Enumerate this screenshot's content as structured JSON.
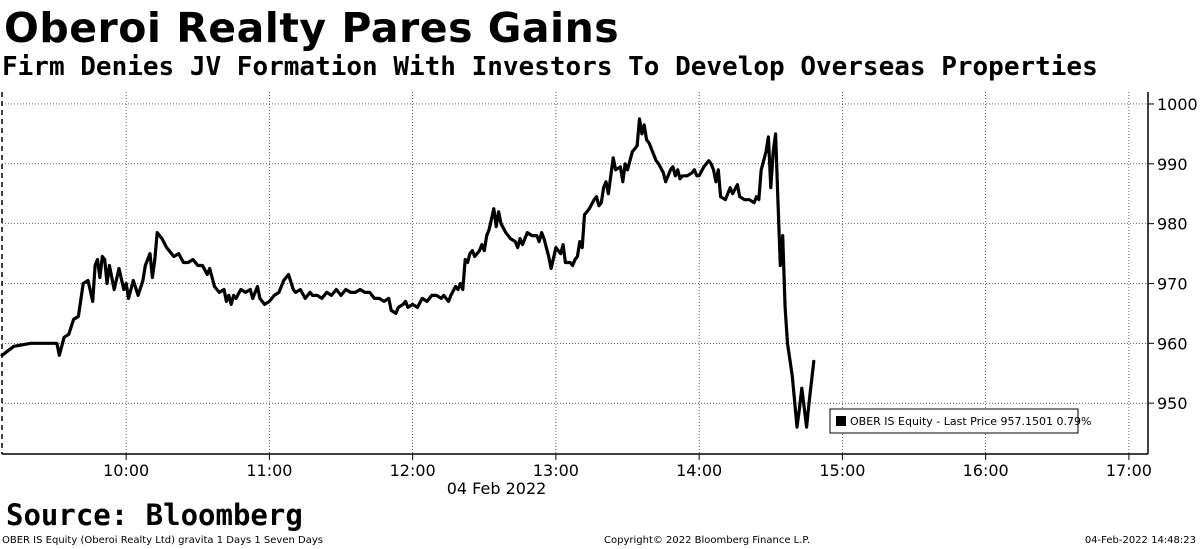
{
  "title": "Oberoi Realty Pares Gains",
  "subtitle": "Firm Denies JV Formation With Investors To Develop Overseas Properties",
  "source": "Source: Bloomberg",
  "footer": {
    "left": "OBER IS Equity (Oberoi Realty Ltd) gravita 1 Days 1 Seven Days",
    "center": "Copyright© 2022 Bloomberg Finance L.P.",
    "right": "04-Feb-2022 14:48:23"
  },
  "chart_data": {
    "type": "line",
    "xlabel": "04 Feb 2022",
    "ylabel": "",
    "x_ticks": [
      "10:00",
      "11:00",
      "12:00",
      "13:00",
      "14:00",
      "15:00",
      "16:00",
      "17:00"
    ],
    "x_range": [
      "09:08",
      "17:08"
    ],
    "y_ticks": [
      950,
      960,
      970,
      980,
      990,
      1000
    ],
    "ylim": [
      941.5,
      1002
    ],
    "grid": true,
    "legend_position": "bottom-right",
    "series": [
      {
        "name": "OBER IS Equity - Last Price 957.1501 0.79%",
        "color": "#000000",
        "points": [
          [
            "09:08",
            958
          ],
          [
            "09:13",
            959.5
          ],
          [
            "09:20",
            960
          ],
          [
            "09:31",
            960
          ],
          [
            "09:32",
            958
          ],
          [
            "09:34",
            961
          ],
          [
            "09:36",
            961.5
          ],
          [
            "09:38",
            964
          ],
          [
            "09:40",
            964.5
          ],
          [
            "09:42",
            970
          ],
          [
            "09:44",
            970.5
          ],
          [
            "09:46",
            967
          ],
          [
            "09:47",
            973
          ],
          [
            "09:48",
            974
          ],
          [
            "09:49",
            971
          ],
          [
            "09:50",
            974.5
          ],
          [
            "09:51",
            974
          ],
          [
            "09:52",
            970
          ],
          [
            "09:53",
            973
          ],
          [
            "09:55",
            969
          ],
          [
            "09:57",
            972.5
          ],
          [
            "09:59",
            969
          ],
          [
            "10:00",
            970
          ],
          [
            "10:01",
            967.5
          ],
          [
            "10:03",
            970.5
          ],
          [
            "10:05",
            968
          ],
          [
            "10:07",
            970.5
          ],
          [
            "10:08",
            973
          ],
          [
            "10:10",
            975
          ],
          [
            "10:11",
            971
          ],
          [
            "10:12",
            974
          ],
          [
            "10:13",
            978.5
          ],
          [
            "10:15",
            977.5
          ],
          [
            "10:17",
            976
          ],
          [
            "10:18",
            975.5
          ],
          [
            "10:20",
            974.5
          ],
          [
            "10:22",
            975
          ],
          [
            "10:24",
            973.5
          ],
          [
            "10:26",
            973.5
          ],
          [
            "10:28",
            974
          ],
          [
            "10:30",
            973
          ],
          [
            "10:32",
            973
          ],
          [
            "10:34",
            971.5
          ],
          [
            "10:35",
            972.5
          ],
          [
            "10:37",
            969.5
          ],
          [
            "10:39",
            968.5
          ],
          [
            "10:41",
            969
          ],
          [
            "10:42",
            967
          ],
          [
            "10:43",
            968
          ],
          [
            "10:44",
            966.5
          ],
          [
            "10:45",
            968
          ],
          [
            "10:46",
            967.5
          ],
          [
            "10:48",
            969
          ],
          [
            "10:50",
            968.5
          ],
          [
            "10:52",
            969
          ],
          [
            "10:53",
            967.5
          ],
          [
            "10:55",
            969.5
          ],
          [
            "10:56",
            967.5
          ],
          [
            "10:58",
            966.5
          ],
          [
            "11:00",
            967
          ],
          [
            "11:02",
            968
          ],
          [
            "11:04",
            968.5
          ],
          [
            "11:06",
            970.5
          ],
          [
            "11:08",
            971.5
          ],
          [
            "11:10",
            969
          ],
          [
            "11:11",
            968.5
          ],
          [
            "11:13",
            969
          ],
          [
            "11:15",
            967.5
          ],
          [
            "11:17",
            968.5
          ],
          [
            "11:18",
            968
          ],
          [
            "11:20",
            968
          ],
          [
            "11:22",
            967.5
          ],
          [
            "11:24",
            968.5
          ],
          [
            "11:26",
            968
          ],
          [
            "11:28",
            969
          ],
          [
            "11:30",
            968
          ],
          [
            "11:32",
            969
          ],
          [
            "11:34",
            968.5
          ],
          [
            "11:36",
            968.5
          ],
          [
            "11:38",
            969
          ],
          [
            "11:40",
            968.5
          ],
          [
            "11:42",
            968.5
          ],
          [
            "11:44",
            967.5
          ],
          [
            "11:46",
            967.5
          ],
          [
            "11:48",
            967
          ],
          [
            "11:50",
            967.5
          ],
          [
            "11:51",
            965.5
          ],
          [
            "11:53",
            965
          ],
          [
            "11:54",
            966
          ],
          [
            "11:56",
            966.5
          ],
          [
            "11:57",
            967
          ],
          [
            "11:58",
            966
          ],
          [
            "12:00",
            966.5
          ],
          [
            "12:02",
            966
          ],
          [
            "12:04",
            967.5
          ],
          [
            "12:06",
            967
          ],
          [
            "12:08",
            968
          ],
          [
            "12:10",
            968
          ],
          [
            "12:12",
            967.5
          ],
          [
            "12:13",
            968
          ],
          [
            "12:15",
            967
          ],
          [
            "12:16",
            968
          ],
          [
            "12:18",
            969.5
          ],
          [
            "12:19",
            969
          ],
          [
            "12:20",
            970
          ],
          [
            "12:21",
            969
          ],
          [
            "12:22",
            974
          ],
          [
            "12:23",
            973.5
          ],
          [
            "12:24",
            975
          ],
          [
            "12:25",
            975.5
          ],
          [
            "12:26",
            974.5
          ],
          [
            "12:28",
            975.5
          ],
          [
            "12:29",
            976.5
          ],
          [
            "12:30",
            975.5
          ],
          [
            "12:31",
            978
          ],
          [
            "12:32",
            979
          ],
          [
            "12:34",
            982.5
          ],
          [
            "12:35",
            979.5
          ],
          [
            "12:36",
            982
          ],
          [
            "12:37",
            980
          ],
          [
            "12:39",
            978.5
          ],
          [
            "12:41",
            977.5
          ],
          [
            "12:43",
            977
          ],
          [
            "12:44",
            976
          ],
          [
            "12:45",
            977.5
          ],
          [
            "12:46",
            976.5
          ],
          [
            "12:48",
            978.5
          ],
          [
            "12:50",
            978
          ],
          [
            "12:52",
            978
          ],
          [
            "12:53",
            977
          ],
          [
            "12:54",
            978.5
          ],
          [
            "12:55",
            977.5
          ],
          [
            "12:57",
            974.5
          ],
          [
            "12:58",
            972.5
          ],
          [
            "13:00",
            976
          ],
          [
            "13:02",
            975
          ],
          [
            "13:03",
            976.5
          ],
          [
            "13:04",
            973.5
          ],
          [
            "13:06",
            973.5
          ],
          [
            "13:07",
            973
          ],
          [
            "13:08",
            974
          ],
          [
            "13:09",
            974.5
          ],
          [
            "13:10",
            977
          ],
          [
            "13:11",
            976
          ],
          [
            "13:12",
            981.5
          ],
          [
            "13:14",
            982.5
          ],
          [
            "13:16",
            984
          ],
          [
            "13:17",
            984.5
          ],
          [
            "13:18",
            983
          ],
          [
            "13:19",
            983.5
          ],
          [
            "13:20",
            986
          ],
          [
            "13:21",
            987
          ],
          [
            "13:22",
            985
          ],
          [
            "13:24",
            991
          ],
          [
            "13:25",
            989
          ],
          [
            "13:27",
            989.5
          ],
          [
            "13:28",
            987
          ],
          [
            "13:29",
            990
          ],
          [
            "13:30",
            989
          ],
          [
            "13:32",
            992
          ],
          [
            "13:34",
            993
          ],
          [
            "13:35",
            997.5
          ],
          [
            "13:36",
            995
          ],
          [
            "13:37",
            996.5
          ],
          [
            "13:38",
            994
          ],
          [
            "13:39",
            993.5
          ],
          [
            "13:40",
            992.5
          ],
          [
            "13:42",
            990.5
          ],
          [
            "13:43",
            990
          ],
          [
            "13:45",
            988.5
          ],
          [
            "13:46",
            987
          ],
          [
            "13:48",
            989
          ],
          [
            "13:49",
            989.5
          ],
          [
            "13:50",
            988
          ],
          [
            "13:51",
            989
          ],
          [
            "13:52",
            987.5
          ],
          [
            "13:53",
            988
          ],
          [
            "13:55",
            988
          ],
          [
            "13:57",
            988.5
          ],
          [
            "13:58",
            989
          ],
          [
            "13:59",
            988
          ],
          [
            "14:00",
            988
          ],
          [
            "14:02",
            989.5
          ],
          [
            "14:04",
            990.5
          ],
          [
            "14:05",
            990
          ],
          [
            "14:06",
            989
          ],
          [
            "14:07",
            987
          ],
          [
            "14:08",
            989
          ],
          [
            "14:09",
            984.5
          ],
          [
            "14:11",
            984
          ],
          [
            "14:13",
            986
          ],
          [
            "14:14",
            985
          ],
          [
            "14:16",
            986.5
          ],
          [
            "14:17",
            984.5
          ],
          [
            "14:19",
            984
          ],
          [
            "14:21",
            984
          ],
          [
            "14:23",
            983.5
          ],
          [
            "14:24",
            984.5
          ],
          [
            "14:25",
            984
          ],
          [
            "14:26",
            989
          ],
          [
            "14:28",
            992
          ],
          [
            "14:29",
            994.5
          ],
          [
            "14:30",
            986
          ],
          [
            "14:31",
            992
          ],
          [
            "14:32",
            995
          ],
          [
            "14:33",
            984
          ],
          [
            "14:34",
            973
          ],
          [
            "14:35",
            978
          ],
          [
            "14:36",
            966
          ],
          [
            "14:37",
            960
          ],
          [
            "14:39",
            954.5
          ],
          [
            "14:41",
            946
          ],
          [
            "14:42",
            949
          ],
          [
            "14:43",
            952.5
          ],
          [
            "14:45",
            946
          ],
          [
            "14:46",
            950
          ],
          [
            "14:47",
            953.5
          ],
          [
            "14:48",
            957
          ]
        ]
      }
    ]
  }
}
